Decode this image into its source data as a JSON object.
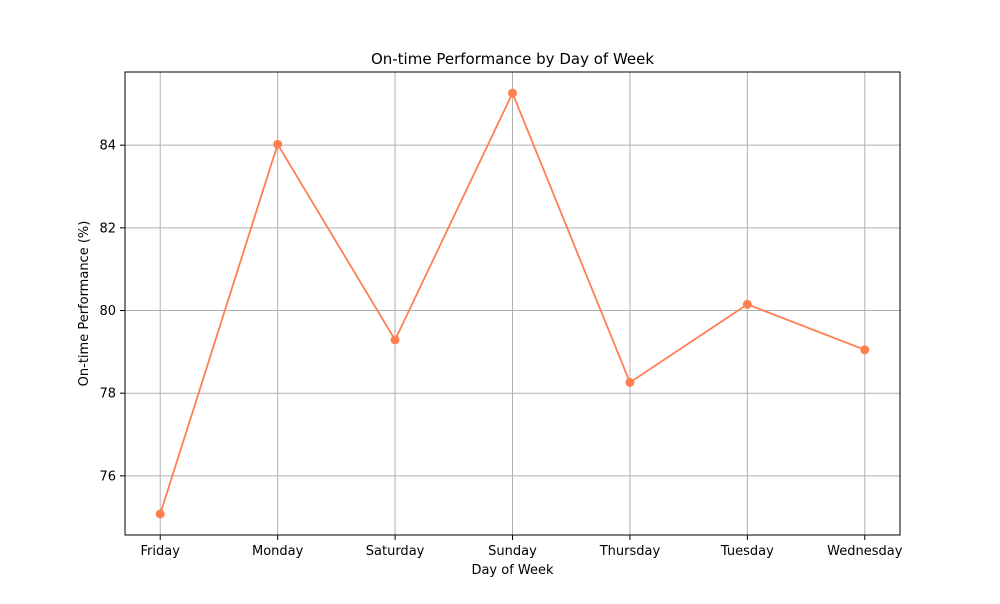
{
  "chart_data": {
    "type": "line",
    "title": "On-time Performance by Day of Week",
    "xlabel": "Day of Week",
    "ylabel": "On-time Performance (%)",
    "categories": [
      "Friday",
      "Monday",
      "Saturday",
      "Sunday",
      "Thursday",
      "Tuesday",
      "Wednesday"
    ],
    "series": [
      {
        "values": [
          75.08,
          84.02,
          79.29,
          85.26,
          78.26,
          80.15,
          79.05
        ],
        "color": "#ff7f50",
        "marker": "circle"
      }
    ],
    "ylim": [
      74.57,
      85.77
    ],
    "yticks": [
      76,
      78,
      80,
      82,
      84
    ],
    "grid": true,
    "legend": "none"
  }
}
